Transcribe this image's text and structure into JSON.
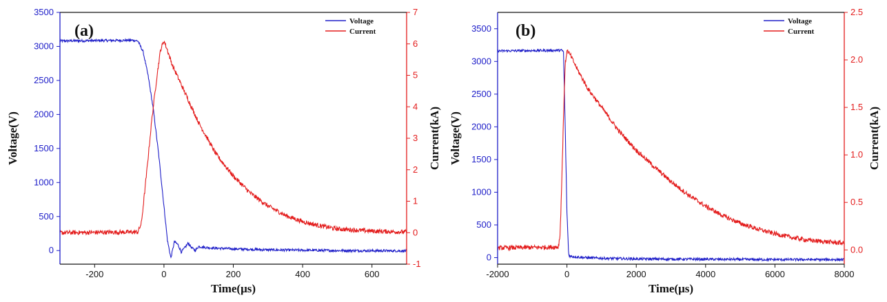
{
  "colors": {
    "voltage": "#1c1cc8",
    "current": "#e31b1b",
    "axis": "#111111"
  },
  "chart_data": [
    {
      "type": "line",
      "panel_label": "(a)",
      "xlabel": "Time(μs)",
      "ylabel": "Voltage(V)",
      "y2label": "Current(kA)",
      "xlim": [
        -300,
        700
      ],
      "ylim": [
        -200,
        3500
      ],
      "y2lim": [
        -1,
        7
      ],
      "x_ticks": [
        -200,
        0,
        200,
        400,
        600
      ],
      "x_tick_labels": [
        "-200",
        "0",
        "200",
        "400",
        "600"
      ],
      "y_ticks": [
        0,
        500,
        1000,
        1500,
        2000,
        2500,
        3000,
        3500
      ],
      "y_tick_labels": [
        "0",
        "500",
        "1000",
        "1500",
        "2000",
        "2500",
        "3000",
        "3500"
      ],
      "y2_ticks": [
        -1,
        0,
        1,
        2,
        3,
        4,
        5,
        6,
        7
      ],
      "y2_tick_labels": [
        "-1",
        "0",
        "1",
        "2",
        "3",
        "4",
        "5",
        "6",
        "7"
      ],
      "legend": [
        "Voltage",
        "Current"
      ],
      "legend_position": "top-right",
      "series": [
        {
          "name": "Voltage",
          "axis": "left",
          "x": [
            -300,
            -90,
            -75,
            -60,
            -45,
            -30,
            -15,
            0,
            10,
            20,
            30,
            40,
            50,
            60,
            70,
            80,
            90,
            100,
            120,
            150,
            200,
            300,
            400,
            500,
            700
          ],
          "y": [
            3080,
            3090,
            3080,
            2920,
            2550,
            2050,
            1400,
            650,
            150,
            -110,
            130,
            90,
            -20,
            40,
            110,
            40,
            0,
            60,
            45,
            35,
            25,
            10,
            5,
            0,
            -5
          ]
        },
        {
          "name": "Current",
          "axis": "right",
          "x": [
            -300,
            -75,
            -65,
            -50,
            -35,
            -20,
            -10,
            0,
            10,
            25,
            50,
            75,
            100,
            150,
            200,
            250,
            300,
            350,
            400,
            450,
            500,
            600,
            700
          ],
          "y": [
            0.0,
            0.02,
            0.3,
            1.9,
            3.6,
            5.0,
            5.8,
            6.1,
            5.8,
            5.3,
            4.7,
            4.1,
            3.5,
            2.5,
            1.8,
            1.25,
            0.85,
            0.55,
            0.35,
            0.22,
            0.12,
            0.05,
            0.02
          ]
        }
      ]
    },
    {
      "type": "line",
      "panel_label": "(b)",
      "xlabel": "Time(μs)",
      "ylabel": "Voltage(V)",
      "y2label": "Current(kA)",
      "xlim": [
        -2000,
        8000
      ],
      "ylim": [
        -100,
        3750
      ],
      "y2lim": [
        -0.15,
        2.5
      ],
      "x_ticks": [
        -2000,
        0,
        2000,
        4000,
        6000,
        8000
      ],
      "x_tick_labels": [
        "-2000",
        "0",
        "2000",
        "4000",
        "6000",
        "8000"
      ],
      "y_ticks": [
        0,
        500,
        1000,
        1500,
        2000,
        2500,
        3000,
        3500
      ],
      "y_tick_labels": [
        "0",
        "500",
        "1000",
        "1500",
        "2000",
        "2500",
        "3000",
        "3500"
      ],
      "y2_ticks": [
        0.0,
        0.5,
        1.0,
        1.5,
        2.0,
        2.5
      ],
      "y2_tick_labels": [
        "0.0",
        "0.5",
        "1.0",
        "1.5",
        "2.0",
        "2.5"
      ],
      "legend": [
        "Voltage",
        "Current"
      ],
      "legend_position": "top-right",
      "series": [
        {
          "name": "Voltage",
          "axis": "left",
          "x": [
            -2000,
            -150,
            -100,
            -50,
            0,
            50,
            100,
            500,
            1000,
            2000,
            4000,
            6000,
            8000
          ],
          "y": [
            3160,
            3170,
            3150,
            2000,
            700,
            40,
            20,
            0,
            -10,
            -20,
            -25,
            -30,
            -30
          ]
        },
        {
          "name": "Current",
          "axis": "right",
          "x": [
            -2000,
            -250,
            -200,
            -150,
            -100,
            -50,
            0,
            100,
            300,
            600,
            1000,
            1500,
            2000,
            2500,
            3000,
            3500,
            4000,
            4500,
            5000,
            5500,
            6000,
            6500,
            7000,
            8000
          ],
          "y": [
            0.02,
            0.03,
            0.15,
            0.7,
            1.4,
            1.95,
            2.1,
            2.05,
            1.9,
            1.7,
            1.5,
            1.25,
            1.05,
            0.88,
            0.72,
            0.58,
            0.46,
            0.36,
            0.28,
            0.22,
            0.17,
            0.13,
            0.1,
            0.07
          ]
        }
      ]
    }
  ]
}
